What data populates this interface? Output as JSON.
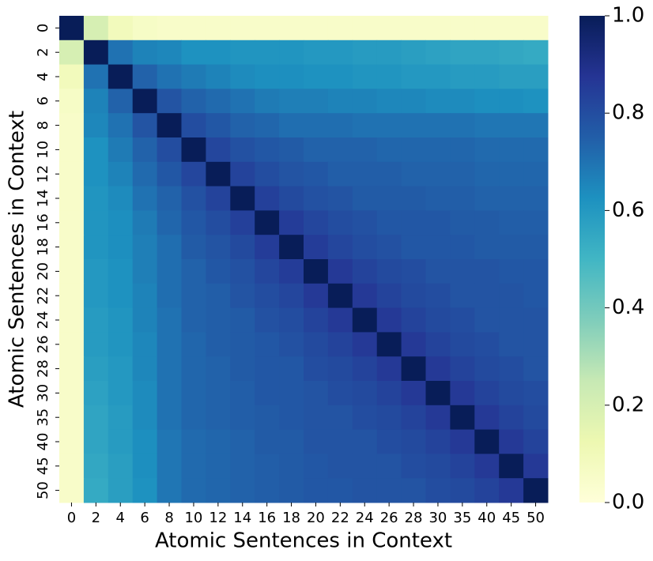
{
  "chart_data": {
    "type": "heatmap",
    "x_label": "Atomic Sentences in Context",
    "y_label": "Atomic Sentences in Context",
    "x_categories": [
      "0",
      "2",
      "4",
      "6",
      "8",
      "10",
      "12",
      "14",
      "16",
      "18",
      "20",
      "22",
      "24",
      "26",
      "28",
      "30",
      "35",
      "40",
      "45",
      "50"
    ],
    "y_categories": [
      "0",
      "2",
      "4",
      "6",
      "8",
      "10",
      "12",
      "14",
      "16",
      "18",
      "20",
      "22",
      "24",
      "26",
      "28",
      "30",
      "35",
      "40",
      "45",
      "50"
    ],
    "colormap": "YlGnBu",
    "clim": [
      0,
      1
    ],
    "cticks": [
      {
        "value": 0,
        "label": "0.0"
      },
      0.2,
      0.4,
      0.6,
      0.8,
      {
        "value": 1,
        "label": "1.0"
      }
    ],
    "values": [
      [
        1,
        0.2,
        0.09,
        0.06,
        0.05,
        0.05,
        0.05,
        0.05,
        0.05,
        0.05,
        0.05,
        0.05,
        0.05,
        0.05,
        0.05,
        0.05,
        0.05,
        0.05,
        0.05,
        0.05
      ],
      [
        0.2,
        1,
        0.7,
        0.66,
        0.65,
        0.62,
        0.62,
        0.61,
        0.61,
        0.61,
        0.6,
        0.6,
        0.59,
        0.59,
        0.58,
        0.57,
        0.56,
        0.56,
        0.55,
        0.54
      ],
      [
        0.09,
        0.7,
        1,
        0.74,
        0.7,
        0.68,
        0.66,
        0.64,
        0.63,
        0.63,
        0.62,
        0.62,
        0.61,
        0.61,
        0.6,
        0.6,
        0.59,
        0.59,
        0.58,
        0.58
      ],
      [
        0.06,
        0.66,
        0.74,
        1,
        0.78,
        0.74,
        0.72,
        0.7,
        0.68,
        0.67,
        0.67,
        0.66,
        0.66,
        0.65,
        0.65,
        0.64,
        0.64,
        0.63,
        0.63,
        0.62
      ],
      [
        0.05,
        0.65,
        0.7,
        0.78,
        1,
        0.8,
        0.77,
        0.74,
        0.73,
        0.71,
        0.71,
        0.71,
        0.7,
        0.7,
        0.7,
        0.7,
        0.7,
        0.69,
        0.69,
        0.69
      ],
      [
        0.05,
        0.62,
        0.68,
        0.74,
        0.8,
        1,
        0.82,
        0.79,
        0.77,
        0.76,
        0.74,
        0.74,
        0.74,
        0.73,
        0.73,
        0.73,
        0.73,
        0.72,
        0.72,
        0.72
      ],
      [
        0.05,
        0.62,
        0.66,
        0.72,
        0.77,
        0.82,
        1,
        0.83,
        0.8,
        0.78,
        0.77,
        0.75,
        0.75,
        0.75,
        0.74,
        0.74,
        0.74,
        0.73,
        0.73,
        0.73
      ],
      [
        0.05,
        0.61,
        0.64,
        0.7,
        0.74,
        0.79,
        0.83,
        1,
        0.84,
        0.81,
        0.79,
        0.78,
        0.76,
        0.76,
        0.76,
        0.75,
        0.75,
        0.74,
        0.74,
        0.74
      ],
      [
        0.05,
        0.61,
        0.63,
        0.68,
        0.73,
        0.77,
        0.8,
        0.84,
        1,
        0.85,
        0.82,
        0.8,
        0.79,
        0.77,
        0.77,
        0.77,
        0.76,
        0.76,
        0.75,
        0.75
      ],
      [
        0.05,
        0.61,
        0.63,
        0.67,
        0.71,
        0.76,
        0.78,
        0.81,
        0.85,
        1,
        0.85,
        0.82,
        0.8,
        0.79,
        0.77,
        0.77,
        0.77,
        0.76,
        0.76,
        0.76
      ],
      [
        0.05,
        0.6,
        0.62,
        0.67,
        0.71,
        0.74,
        0.77,
        0.79,
        0.82,
        0.85,
        1,
        0.86,
        0.83,
        0.81,
        0.8,
        0.78,
        0.78,
        0.78,
        0.77,
        0.77
      ],
      [
        0.05,
        0.6,
        0.62,
        0.66,
        0.71,
        0.74,
        0.75,
        0.78,
        0.8,
        0.82,
        0.86,
        1,
        0.86,
        0.83,
        0.81,
        0.8,
        0.78,
        0.78,
        0.78,
        0.77
      ],
      [
        0.05,
        0.59,
        0.61,
        0.66,
        0.7,
        0.74,
        0.75,
        0.76,
        0.79,
        0.8,
        0.83,
        0.86,
        1,
        0.86,
        0.83,
        0.81,
        0.8,
        0.78,
        0.78,
        0.78
      ],
      [
        0.05,
        0.59,
        0.61,
        0.65,
        0.7,
        0.73,
        0.75,
        0.76,
        0.77,
        0.79,
        0.81,
        0.83,
        0.86,
        1,
        0.86,
        0.83,
        0.81,
        0.8,
        0.78,
        0.78
      ],
      [
        0.05,
        0.58,
        0.6,
        0.65,
        0.7,
        0.73,
        0.74,
        0.76,
        0.77,
        0.77,
        0.8,
        0.81,
        0.83,
        0.86,
        1,
        0.86,
        0.83,
        0.81,
        0.8,
        0.78
      ],
      [
        0.05,
        0.57,
        0.6,
        0.64,
        0.7,
        0.73,
        0.74,
        0.75,
        0.77,
        0.77,
        0.78,
        0.8,
        0.81,
        0.83,
        0.86,
        1,
        0.86,
        0.83,
        0.81,
        0.8
      ],
      [
        0.05,
        0.56,
        0.59,
        0.64,
        0.7,
        0.73,
        0.74,
        0.75,
        0.76,
        0.77,
        0.78,
        0.78,
        0.8,
        0.81,
        0.83,
        0.86,
        1,
        0.86,
        0.83,
        0.81
      ],
      [
        0.05,
        0.56,
        0.59,
        0.63,
        0.69,
        0.72,
        0.73,
        0.74,
        0.76,
        0.76,
        0.78,
        0.78,
        0.78,
        0.8,
        0.81,
        0.83,
        0.86,
        1,
        0.86,
        0.83
      ],
      [
        0.05,
        0.55,
        0.58,
        0.63,
        0.69,
        0.72,
        0.73,
        0.74,
        0.75,
        0.76,
        0.77,
        0.78,
        0.78,
        0.78,
        0.8,
        0.81,
        0.83,
        0.86,
        1,
        0.86
      ],
      [
        0.05,
        0.54,
        0.58,
        0.62,
        0.69,
        0.72,
        0.73,
        0.74,
        0.75,
        0.76,
        0.77,
        0.77,
        0.78,
        0.78,
        0.78,
        0.8,
        0.81,
        0.83,
        0.86,
        1
      ]
    ]
  }
}
